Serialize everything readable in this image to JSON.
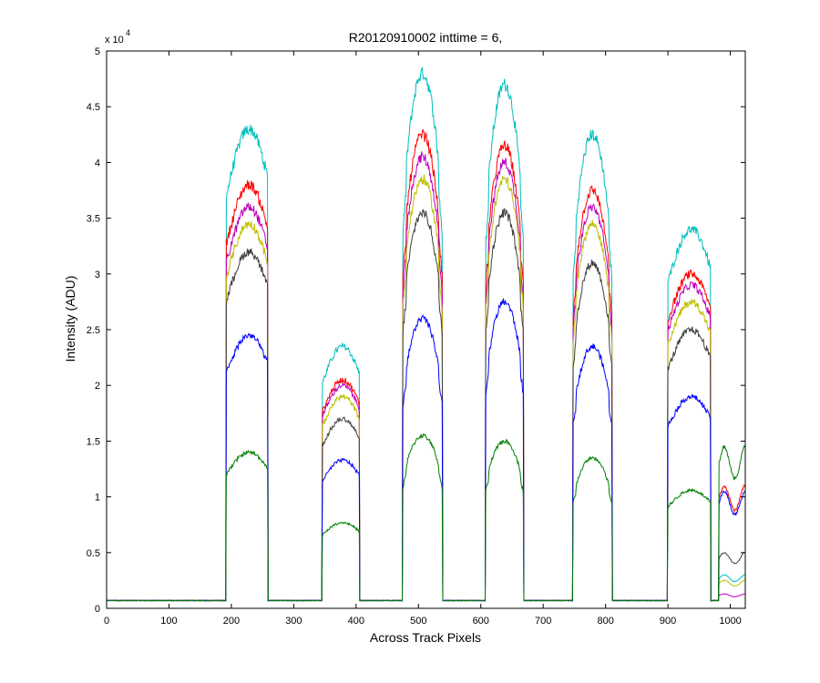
{
  "chart_data": {
    "type": "line",
    "title": "R20120910002 inttime = 6,",
    "xlabel": "Across Track Pixels",
    "ylabel": "Intensity (ADU)",
    "y_exponent_label": "x 10",
    "y_exponent_power": "4",
    "xlim": [
      0,
      1024
    ],
    "ylim": [
      0,
      50000
    ],
    "x_ticks": [
      0,
      100,
      200,
      300,
      400,
      500,
      600,
      700,
      800,
      900,
      1000
    ],
    "x_tick_labels": [
      "0",
      "100",
      "200",
      "300",
      "400",
      "500",
      "600",
      "700",
      "800",
      "900",
      "1000"
    ],
    "y_ticks": [
      0,
      5000,
      10000,
      15000,
      20000,
      25000,
      30000,
      35000,
      40000,
      45000,
      50000
    ],
    "y_tick_labels": [
      "0",
      "0.5",
      "1",
      "1.5",
      "2",
      "2.5",
      "3",
      "3.5",
      "4",
      "4.5",
      "5"
    ],
    "grid": false,
    "legend": "none",
    "baseline": 700,
    "segments": [
      {
        "x0": 192,
        "x1": 258,
        "profile": "flat"
      },
      {
        "x0": 346,
        "x1": 405,
        "profile": "flat"
      },
      {
        "x0": 475,
        "x1": 538,
        "profile": "peak"
      },
      {
        "x0": 608,
        "x1": 668,
        "profile": "peak"
      },
      {
        "x0": 748,
        "x1": 810,
        "profile": "peak"
      },
      {
        "x0": 900,
        "x1": 968,
        "profile": "flat"
      },
      {
        "x0": 982,
        "x1": 1024,
        "profile": "edge"
      }
    ],
    "series": [
      {
        "color": "#00bfbf",
        "amplitudes": [
          43000,
          23500,
          48000,
          47000,
          42500,
          34000,
          3000
        ]
      },
      {
        "color": "#ff0000",
        "amplitudes": [
          38000,
          20500,
          42500,
          41500,
          37500,
          30000,
          11000
        ]
      },
      {
        "color": "#bf00bf",
        "amplitudes": [
          36000,
          20000,
          40500,
          40000,
          36000,
          29000,
          1300
        ]
      },
      {
        "color": "#bfbf00",
        "amplitudes": [
          34500,
          19000,
          38500,
          38500,
          34500,
          27500,
          2500
        ]
      },
      {
        "color": "#404040",
        "amplitudes": [
          32000,
          17000,
          35500,
          35500,
          31000,
          25000,
          5000
        ]
      },
      {
        "color": "#0000ff",
        "amplitudes": [
          24500,
          13300,
          26000,
          27500,
          23500,
          19000,
          10500
        ]
      },
      {
        "color": "#008000",
        "amplitudes": [
          14000,
          7700,
          15500,
          15000,
          13500,
          10600,
          14500
        ]
      }
    ]
  }
}
